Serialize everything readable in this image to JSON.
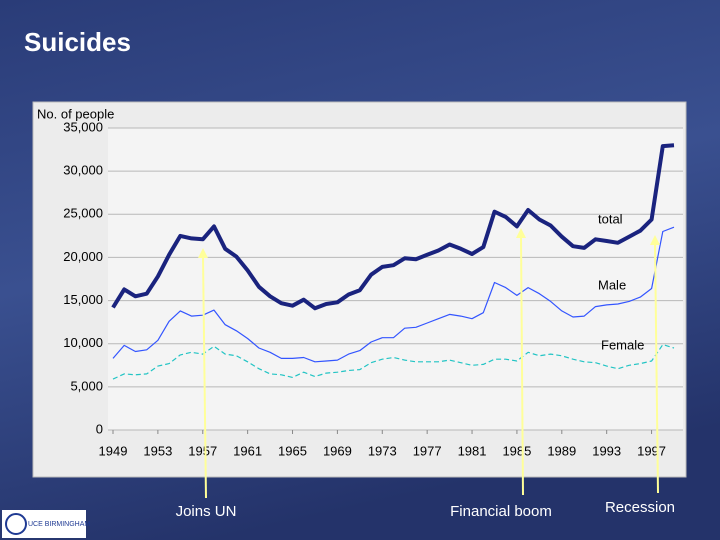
{
  "slide_title": "Suicides",
  "logo": "UCE BIRMINGHAM",
  "chart_data": {
    "type": "line",
    "ylabel": "No. of people",
    "x": [
      1949,
      1950,
      1951,
      1952,
      1953,
      1954,
      1955,
      1956,
      1957,
      1958,
      1959,
      1960,
      1961,
      1962,
      1963,
      1964,
      1965,
      1966,
      1967,
      1968,
      1969,
      1970,
      1971,
      1972,
      1973,
      1974,
      1975,
      1976,
      1977,
      1978,
      1979,
      1980,
      1981,
      1982,
      1983,
      1984,
      1985,
      1986,
      1987,
      1988,
      1989,
      1990,
      1991,
      1992,
      1993,
      1994,
      1995,
      1996,
      1997,
      1998,
      1999
    ],
    "xlim": [
      1949,
      1999
    ],
    "xticks": [
      1949,
      1953,
      1957,
      1961,
      1965,
      1969,
      1973,
      1977,
      1981,
      1985,
      1989,
      1993,
      1997
    ],
    "ylim": [
      0,
      35000
    ],
    "yticks": [
      0,
      {
        "value": 5000,
        "label": "5,000"
      },
      {
        "value": 10000,
        "label": "10,000"
      },
      {
        "value": 15000,
        "label": "15,000"
      },
      {
        "value": 20000,
        "label": "20,000"
      },
      {
        "value": 25000,
        "label": "25,000"
      },
      {
        "value": 30000,
        "label": "30,000"
      },
      {
        "value": 35000,
        "label": "35,000"
      }
    ],
    "grid": true,
    "series": [
      {
        "name": "total",
        "color": "#1a237e",
        "values": [
          14200,
          16300,
          15500,
          15800,
          17800,
          20300,
          22500,
          22200,
          22100,
          23600,
          21000,
          20100,
          18500,
          16600,
          15500,
          14700,
          14400,
          15100,
          14100,
          14600,
          14800,
          15700,
          16200,
          18000,
          18900,
          19100,
          19900,
          19800,
          20300,
          20800,
          21500,
          21000,
          20400,
          21200,
          25300,
          24700,
          23600,
          25500,
          24400,
          23700,
          22400,
          21300,
          21100,
          22100,
          21900,
          21700,
          22400,
          23100,
          24400,
          32900,
          33000
        ]
      },
      {
        "name": "Male",
        "color": "#3355ff",
        "values": [
          8300,
          9800,
          9100,
          9300,
          10400,
          12600,
          13800,
          13200,
          13300,
          13900,
          12200,
          11500,
          10600,
          9500,
          9000,
          8300,
          8300,
          8400,
          7900,
          8000,
          8100,
          8800,
          9200,
          10200,
          10700,
          10700,
          11800,
          11900,
          12400,
          12900,
          13400,
          13200,
          12900,
          13600,
          17100,
          16500,
          15600,
          16500,
          15800,
          14900,
          13800,
          13100,
          13200,
          14300,
          14500,
          14600,
          14900,
          15400,
          16400,
          23000,
          23500
        ]
      },
      {
        "name": "Female",
        "color": "#22c4c4",
        "dashed": true,
        "values": [
          5900,
          6500,
          6400,
          6500,
          7400,
          7700,
          8700,
          9000,
          8800,
          9700,
          8800,
          8600,
          7900,
          7100,
          6500,
          6400,
          6100,
          6700,
          6200,
          6600,
          6700,
          6900,
          7000,
          7800,
          8200,
          8400,
          8100,
          7900,
          7900,
          7900,
          8100,
          7800,
          7500,
          7600,
          8200,
          8200,
          8000,
          9000,
          8600,
          8800,
          8600,
          8200,
          7900,
          7800,
          7400,
          7100,
          7500,
          7700,
          8000,
          9900,
          9500
        ]
      }
    ],
    "annotations": [
      "Joins UN",
      "Financial boom",
      "Recession"
    ]
  }
}
